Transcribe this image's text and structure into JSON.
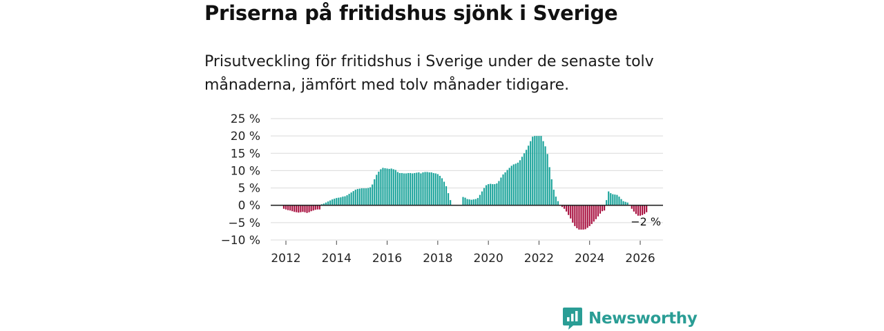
{
  "colors": {
    "positive": "#1aa39a",
    "negative": "#a8103f",
    "grid": "#d9d9d9",
    "zero_line": "#222222",
    "brand": "#2a9d95"
  },
  "chart_data": {
    "type": "bar",
    "title": "Priserna på fritidshus sjönk i Sverige",
    "subtitle": "Prisutveckling för fritidshus i Sverige under de senaste tolv månaderna, jämfört med tolv månader tidigare.",
    "ylim": [
      -10,
      25
    ],
    "yticks": [
      25,
      20,
      15,
      10,
      5,
      0,
      -5,
      -10
    ],
    "ytick_labels": [
      "25 %",
      "20 %",
      "15 %",
      "10 %",
      "5 %",
      "0 %",
      "−5 %",
      "−10 %"
    ],
    "xlim": [
      2011.4,
      2026.9
    ],
    "xticks": [
      2012,
      2014,
      2016,
      2018,
      2020,
      2022,
      2024,
      2026
    ],
    "xtick_labels": [
      "2012",
      "2014",
      "2016",
      "2018",
      "2020",
      "2022",
      "2024",
      "2026"
    ],
    "grid": true,
    "series": [
      {
        "name": "Prisutveckling",
        "start": {
          "year": 2011,
          "month": 12
        },
        "values": [
          -1,
          -1.2,
          -1.4,
          -1.5,
          -1.7,
          -1.9,
          -2,
          -2.1,
          -2,
          -1.9,
          -2,
          -2.2,
          -2,
          -1.7,
          -1.5,
          -1.3,
          -1.2,
          -1.2,
          0.3,
          0.5,
          0.8,
          1.1,
          1.4,
          1.7,
          1.9,
          2.1,
          2.2,
          2.3,
          2.5,
          2.6,
          2.9,
          3.3,
          3.7,
          4.1,
          4.5,
          4.7,
          4.8,
          4.9,
          4.9,
          4.9,
          5,
          5.2,
          6,
          7.5,
          8.8,
          9.7,
          10.4,
          10.8,
          10.7,
          10.6,
          10.5,
          10.6,
          10.4,
          10.2,
          9.6,
          9.3,
          9.3,
          9.2,
          9.2,
          9.3,
          9.3,
          9.2,
          9.3,
          9.4,
          9.5,
          9.2,
          9.5,
          9.6,
          9.6,
          9.5,
          9.5,
          9.3,
          9.2,
          9,
          8.5,
          7.8,
          6.8,
          5.5,
          3.5,
          1.5,
          0,
          0,
          0,
          0,
          0,
          2.4,
          2.2,
          1.8,
          1.7,
          1.6,
          1.7,
          1.8,
          2.1,
          3,
          4,
          5,
          5.8,
          6.1,
          6.2,
          6.1,
          6.1,
          6.3,
          7,
          8,
          8.9,
          9.5,
          10.2,
          10.8,
          11.4,
          11.8,
          12,
          12.3,
          13,
          14,
          15,
          16,
          17.2,
          18.5,
          19.8,
          20,
          20,
          20,
          20,
          18.5,
          17,
          14.8,
          11,
          7.5,
          4.5,
          2.5,
          1.2,
          0,
          -0.5,
          -1,
          -1.8,
          -2.8,
          -3.8,
          -5,
          -6,
          -6.6,
          -7,
          -7,
          -7,
          -6.9,
          -6.5,
          -6,
          -5.4,
          -4.7,
          -4,
          -3.2,
          -2.4,
          -1.7,
          -1.5,
          1.5,
          4,
          3.5,
          3.2,
          3.1,
          3,
          2.5,
          1.8,
          1.2,
          1,
          0.8,
          0,
          -1,
          -1.8,
          -2.5,
          -3,
          -3,
          -2.8,
          -2.5,
          -2
        ]
      }
    ],
    "annotations": [
      {
        "text": "−2 %",
        "target": "last-value"
      }
    ]
  },
  "brand": {
    "name": "Newsworthy",
    "icon": "newsworthy-logo-icon"
  }
}
